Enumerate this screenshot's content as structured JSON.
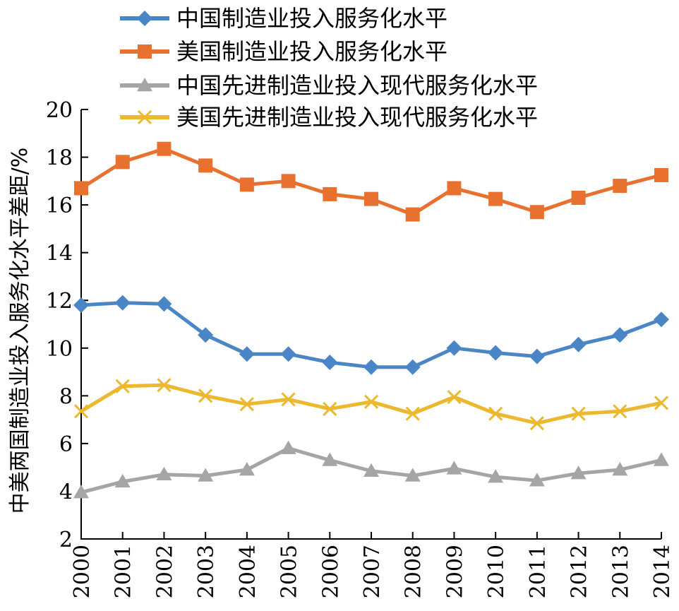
{
  "chart_data": {
    "type": "line",
    "title": "",
    "xlabel": "",
    "ylabel": "中美两国制造业投入服务化水平差距/%",
    "ylim": [
      2,
      20
    ],
    "yticks": [
      2,
      4,
      6,
      8,
      10,
      12,
      14,
      16,
      18,
      20
    ],
    "x": [
      "2000",
      "2001",
      "2002",
      "2003",
      "2004",
      "2005",
      "2006",
      "2007",
      "2008",
      "2009",
      "2010",
      "2011",
      "2012",
      "2013",
      "2014"
    ],
    "grid": false,
    "legend_position": "top",
    "series": [
      {
        "name": "中国制造业投入服务化水平",
        "color": "#4a86c5",
        "marker": "diamond",
        "values": [
          11.8,
          11.9,
          11.85,
          10.55,
          9.75,
          9.75,
          9.4,
          9.2,
          9.2,
          10.0,
          9.8,
          9.65,
          10.15,
          10.55,
          11.2
        ]
      },
      {
        "name": "美国制造业投入服务化水平",
        "color": "#e8712f",
        "marker": "square",
        "values": [
          16.7,
          17.8,
          18.35,
          17.65,
          16.85,
          17.0,
          16.45,
          16.25,
          15.6,
          16.7,
          16.25,
          15.7,
          16.3,
          16.8,
          17.25
        ]
      },
      {
        "name": "中国先进制造业投入现代服务化水平",
        "color": "#a5a5a5",
        "marker": "triangle",
        "values": [
          3.95,
          4.4,
          4.7,
          4.65,
          4.9,
          5.8,
          5.3,
          4.85,
          4.65,
          4.95,
          4.6,
          4.45,
          4.75,
          4.9,
          5.3
        ]
      },
      {
        "name": "美国先进制造业投入现代服务化水平",
        "color": "#ebb82e",
        "marker": "x",
        "values": [
          7.35,
          8.4,
          8.45,
          8.0,
          7.65,
          7.85,
          7.45,
          7.75,
          7.25,
          7.95,
          7.25,
          6.85,
          7.25,
          7.35,
          7.7
        ]
      }
    ]
  }
}
